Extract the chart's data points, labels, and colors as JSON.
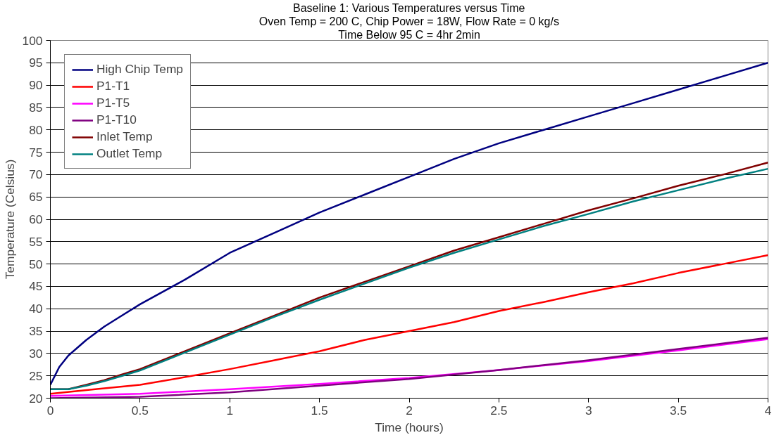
{
  "chart_data": {
    "type": "line",
    "title": "Baseline 1: Various Temperatures versus Time",
    "subtitle": "Oven Temp = 200 C, Chip Power = 18W, Flow Rate = 0 kg/s",
    "annotations": [
      "Time Below 95 C = 4hr 2min"
    ],
    "xlabel": "Time (hours)",
    "ylabel": "Temperature (Celsius)",
    "xlim": [
      0,
      4
    ],
    "xticks": [
      0,
      0.5,
      1,
      1.5,
      2,
      2.5,
      3,
      3.5,
      4
    ],
    "ylim": [
      20,
      100
    ],
    "yticks": [
      20,
      25,
      30,
      35,
      40,
      45,
      50,
      55,
      60,
      65,
      70,
      75,
      80,
      85,
      90,
      95,
      100
    ],
    "grid": "y",
    "legend": "top left",
    "marker": "none",
    "line_style": "solid",
    "series": [
      {
        "name": "High Chip Temp",
        "color": "#000080",
        "x": [
          0,
          0.05,
          0.1,
          0.2,
          0.3,
          0.4,
          0.5,
          0.75,
          1,
          1.25,
          1.5,
          1.75,
          2,
          2.25,
          2.5,
          2.75,
          3,
          3.25,
          3.5,
          3.75,
          4
        ],
        "values": [
          23,
          27,
          29.5,
          33,
          36,
          38.5,
          41,
          46.5,
          52.5,
          57,
          61.5,
          65.5,
          69.5,
          73.5,
          77,
          80,
          83,
          86,
          89,
          92,
          95
        ]
      },
      {
        "name": "P1-T1",
        "color": "#ff0000",
        "x": [
          0,
          0.25,
          0.5,
          0.75,
          1,
          1.25,
          1.5,
          1.75,
          2,
          2.25,
          2.5,
          2.75,
          3,
          3.25,
          3.5,
          3.75,
          4
        ],
        "values": [
          21,
          22,
          23,
          24.7,
          26.5,
          28.5,
          30.5,
          33,
          35,
          37,
          39.5,
          41.5,
          43.7,
          45.7,
          48,
          50,
          52
        ]
      },
      {
        "name": "P1-T5",
        "color": "#ff00ff",
        "x": [
          0,
          0.5,
          1,
          1.5,
          2,
          2.5,
          3,
          3.5,
          4
        ],
        "values": [
          20.5,
          21,
          22,
          23.2,
          24.5,
          26.3,
          28.3,
          30.7,
          33.2
        ]
      },
      {
        "name": "P1-T10",
        "color": "#800080",
        "x": [
          0,
          0.5,
          1,
          1.5,
          2,
          2.5,
          3,
          3.5,
          4
        ],
        "values": [
          20,
          20.3,
          21.3,
          22.8,
          24.3,
          26.3,
          28.5,
          31,
          33.5
        ]
      },
      {
        "name": "Inlet Temp",
        "color": "#800000",
        "x": [
          0,
          0.1,
          0.2,
          0.3,
          0.4,
          0.5,
          0.75,
          1,
          1.25,
          1.5,
          1.75,
          2,
          2.25,
          2.5,
          2.75,
          3,
          3.25,
          3.5,
          3.75,
          4
        ],
        "values": [
          22,
          22,
          23,
          24,
          25.3,
          26.5,
          30.5,
          34.5,
          38.5,
          42.5,
          46,
          49.5,
          53,
          56,
          59,
          62,
          64.7,
          67.5,
          70,
          72.7
        ]
      },
      {
        "name": "Outlet Temp",
        "color": "#008080",
        "x": [
          0,
          0.1,
          0.2,
          0.3,
          0.4,
          0.5,
          0.75,
          1,
          1.25,
          1.5,
          1.75,
          2,
          2.25,
          2.5,
          2.75,
          3,
          3.25,
          3.5,
          3.75,
          4
        ],
        "values": [
          22,
          22,
          22.8,
          23.8,
          25,
          26.2,
          30.2,
          34.2,
          38.2,
          42,
          45.6,
          49.2,
          52.5,
          55.5,
          58.5,
          61.2,
          64,
          66.5,
          69,
          71.3
        ]
      }
    ]
  }
}
